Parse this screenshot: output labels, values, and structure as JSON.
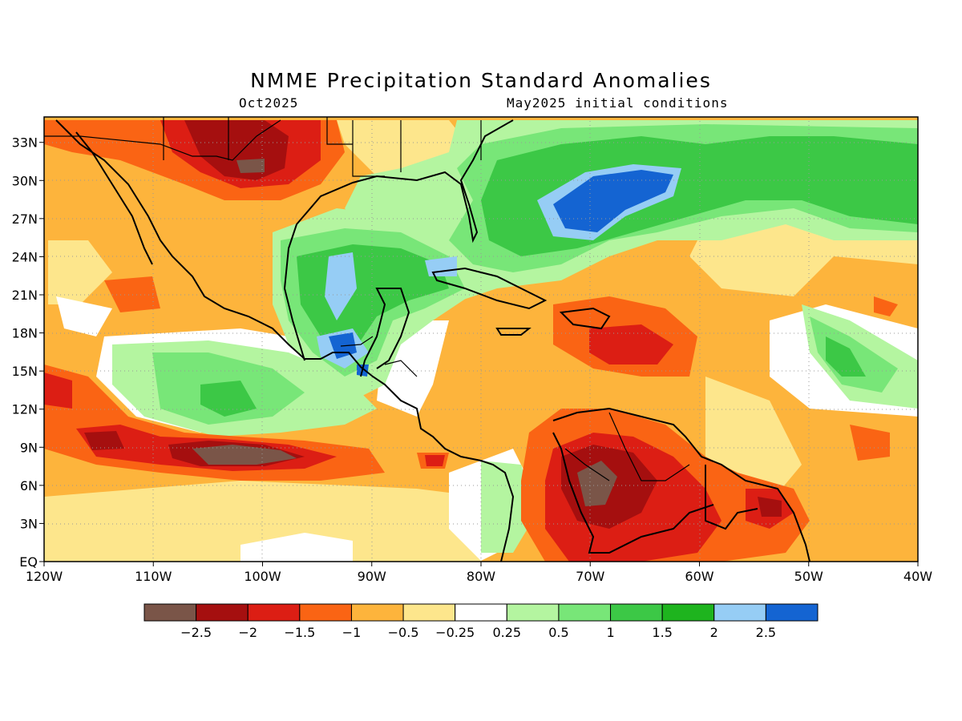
{
  "title": "NMME Precipitation Standard Anomalies",
  "subtitle_left": "Oct2025",
  "subtitle_right": "May2025 initial conditions",
  "map": {
    "lat_range": [
      0,
      35
    ],
    "lon_range": [
      -120,
      -40
    ],
    "y_ticks": [
      "EQ",
      "3N",
      "6N",
      "9N",
      "12N",
      "15N",
      "18N",
      "21N",
      "24N",
      "27N",
      "30N",
      "33N"
    ],
    "x_ticks": [
      "120W",
      "110W",
      "100W",
      "90W",
      "80W",
      "70W",
      "60W",
      "50W",
      "40W"
    ],
    "gridlines": true
  },
  "colorbar": {
    "colors": [
      "#7a5548",
      "#a50f0f",
      "#dc1e14",
      "#fa6414",
      "#fdb43c",
      "#fde68c",
      "#ffffff",
      "#b4f5a0",
      "#78e678",
      "#3cc846",
      "#1eb41e",
      "#96cdf5",
      "#1464d2"
    ],
    "labels": [
      "−2.5",
      "−2",
      "−1.5",
      "−1",
      "−0.5",
      "−0.25",
      "0.25",
      "0.5",
      "1",
      "1.5",
      "2",
      "2.5"
    ]
  }
}
